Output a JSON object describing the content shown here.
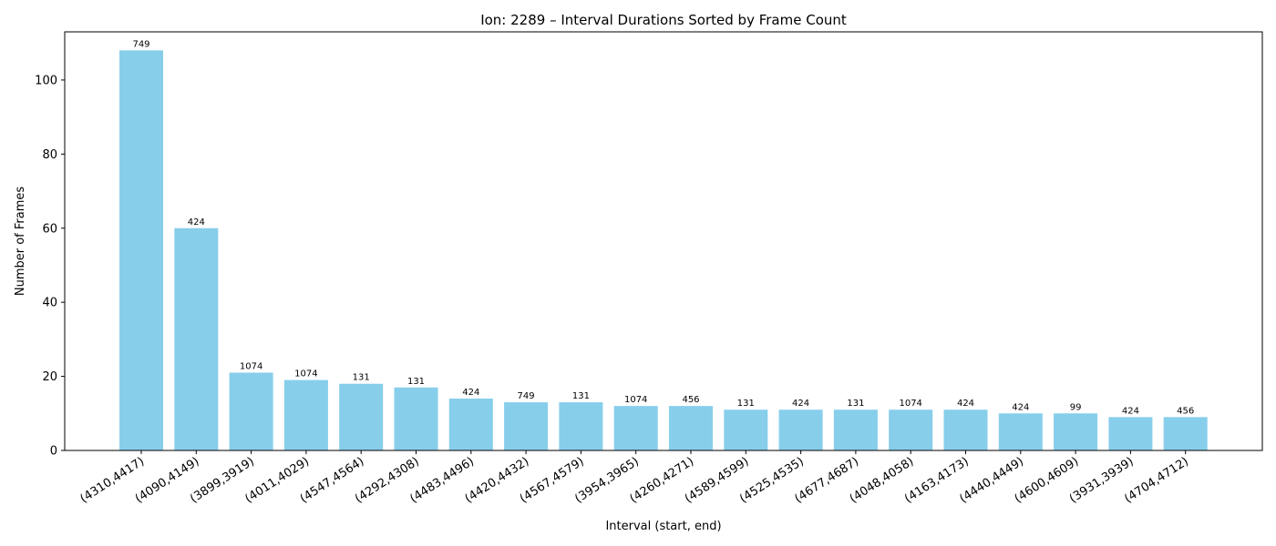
{
  "chart_data": {
    "type": "bar",
    "title": "Ion: 2289 – Interval Durations Sorted by Frame Count",
    "xlabel": "Interval (start, end)",
    "ylabel": "Number of Frames",
    "ylim": [
      0,
      113
    ],
    "yticks": [
      0,
      20,
      40,
      60,
      80,
      100
    ],
    "grid": false,
    "bar_color": "#87ceeb",
    "categories": [
      "(4310,4417)",
      "(4090,4149)",
      "(3899,3919)",
      "(4011,4029)",
      "(4547,4564)",
      "(4292,4308)",
      "(4483,4496)",
      "(4420,4432)",
      "(4567,4579)",
      "(3954,3965)",
      "(4260,4271)",
      "(4589,4599)",
      "(4525,4535)",
      "(4677,4687)",
      "(4048,4058)",
      "(4163,4173)",
      "(4440,4449)",
      "(4600,4609)",
      "(3931,3939)",
      "(4704,4712)"
    ],
    "values": [
      108,
      60,
      21,
      19,
      18,
      17,
      14,
      13,
      13,
      12,
      12,
      11,
      11,
      11,
      11,
      11,
      10,
      10,
      9,
      9
    ],
    "bar_labels": [
      "749",
      "424",
      "1074",
      "1074",
      "131",
      "131",
      "424",
      "749",
      "131",
      "1074",
      "456",
      "131",
      "424",
      "131",
      "1074",
      "424",
      "424",
      "99",
      "424",
      "456"
    ]
  }
}
